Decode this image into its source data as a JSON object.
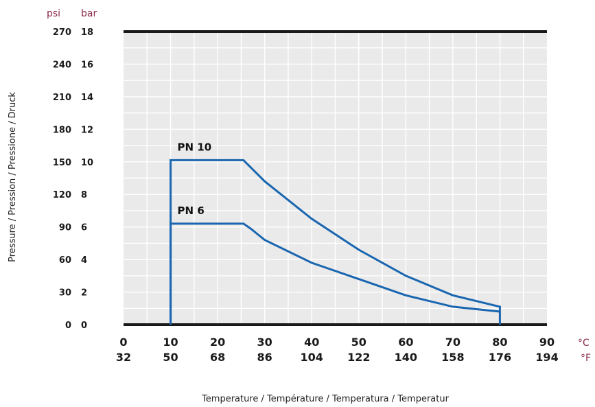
{
  "chart_data": {
    "type": "line",
    "xlabel": "Temperature / Température / Temperatura / Temperatur",
    "ylabel": "Pressure / Pression / Pressione / Druck",
    "x_unit_primary": "°C",
    "x_unit_secondary": "°F",
    "y_unit_primary": "psi",
    "y_unit_secondary": "bar",
    "xlim": [
      0,
      90
    ],
    "ylim": [
      0,
      18
    ],
    "x_ticks": [
      {
        "c": 0,
        "c_label": "0",
        "f_label": "32"
      },
      {
        "c": 10,
        "c_label": "10",
        "f_label": "50"
      },
      {
        "c": 20,
        "c_label": "20",
        "f_label": "68"
      },
      {
        "c": 30,
        "c_label": "30",
        "f_label": "86"
      },
      {
        "c": 40,
        "c_label": "40",
        "f_label": "104"
      },
      {
        "c": 50,
        "c_label": "50",
        "f_label": "122"
      },
      {
        "c": 60,
        "c_label": "60",
        "f_label": "140"
      },
      {
        "c": 70,
        "c_label": "70",
        "f_label": "158"
      },
      {
        "c": 80,
        "c_label": "80",
        "f_label": "176"
      },
      {
        "c": 90,
        "c_label": "90",
        "f_label": "194"
      }
    ],
    "y_ticks": [
      {
        "bar": 0,
        "bar_label": "0",
        "psi_label": "0"
      },
      {
        "bar": 2,
        "bar_label": "2",
        "psi_label": "30"
      },
      {
        "bar": 4,
        "bar_label": "4",
        "psi_label": "60"
      },
      {
        "bar": 6,
        "bar_label": "6",
        "psi_label": "90"
      },
      {
        "bar": 8,
        "bar_label": "8",
        "psi_label": "120"
      },
      {
        "bar": 10,
        "bar_label": "10",
        "psi_label": "150"
      },
      {
        "bar": 12,
        "bar_label": "12",
        "psi_label": "180"
      },
      {
        "bar": 14,
        "bar_label": "14",
        "psi_label": "210"
      },
      {
        "bar": 16,
        "bar_label": "16",
        "psi_label": "240"
      },
      {
        "bar": 18,
        "bar_label": "18",
        "psi_label": "270"
      }
    ],
    "grid": true,
    "line_color": "#1a66b0",
    "plot_background": "#eaeaea",
    "series": [
      {
        "name": "PN 10",
        "x": [
          10,
          10,
          25.5,
          30,
          40,
          50,
          60,
          70,
          80,
          80
        ],
        "y": [
          0,
          10.1,
          10.1,
          8.8,
          6.5,
          4.6,
          3.0,
          1.8,
          1.1,
          0
        ]
      },
      {
        "name": "PN 6",
        "x": [
          10,
          10,
          25.5,
          27,
          30,
          40,
          50,
          60,
          70,
          80
        ],
        "y": [
          0,
          6.2,
          6.2,
          5.9,
          5.2,
          3.8,
          2.8,
          1.8,
          1.1,
          0.8
        ]
      }
    ]
  }
}
